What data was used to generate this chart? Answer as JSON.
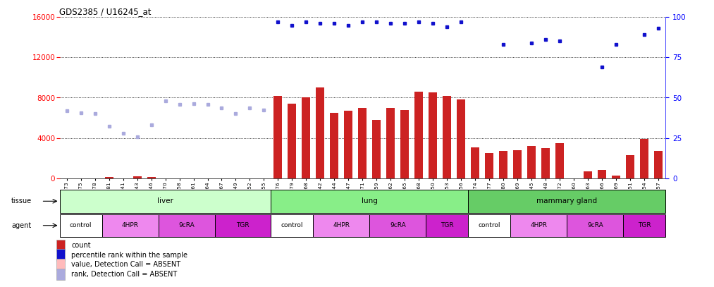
{
  "title": "GDS2385 / U16245_at",
  "samples": [
    "GSM89873",
    "GSM89875",
    "GSM89878",
    "GSM89881",
    "GSM89841",
    "GSM89843",
    "GSM89846",
    "GSM89870",
    "GSM89858",
    "GSM89861",
    "GSM89864",
    "GSM89867",
    "GSM89849",
    "GSM89852",
    "GSM89855",
    "GSM89876",
    "GSM89879",
    "GSM90168",
    "GSM89842",
    "GSM89844",
    "GSM89847",
    "GSM89871",
    "GSM89859",
    "GSM89862",
    "GSM89865",
    "GSM89868",
    "GSM89850",
    "GSM89853",
    "GSM89856",
    "GSM89974",
    "GSM89977",
    "GSM89980",
    "GSM90169",
    "GSM89945",
    "GSM89848",
    "GSM89872",
    "GSM89860",
    "GSM89863",
    "GSM89866",
    "GSM89869",
    "GSM89851",
    "GSM89654",
    "GSM89857"
  ],
  "bar_values": [
    0,
    0,
    0,
    150,
    0,
    200,
    150,
    0,
    0,
    0,
    0,
    0,
    0,
    0,
    0,
    8200,
    7400,
    8000,
    9000,
    6500,
    6700,
    7000,
    5800,
    7000,
    6800,
    8600,
    8500,
    8200,
    7800,
    3100,
    2500,
    2700,
    2800,
    3200,
    3000,
    3500,
    0,
    700,
    800,
    300,
    2300,
    3900,
    2700
  ],
  "dot_values_blue_pct": [
    null,
    null,
    null,
    null,
    null,
    null,
    null,
    null,
    null,
    null,
    null,
    null,
    null,
    null,
    null,
    97,
    95,
    97,
    96,
    96,
    95,
    97,
    97,
    96,
    96,
    97,
    96,
    94,
    97,
    null,
    null,
    83,
    null,
    84,
    86,
    85,
    null,
    null,
    69,
    83,
    null,
    89,
    93
  ],
  "dot_values_light": [
    6700,
    6500,
    6400,
    5200,
    4500,
    4100,
    5300,
    7700,
    7300,
    7400,
    7300,
    7000,
    6400,
    7000,
    6800,
    null,
    null,
    null,
    null,
    null,
    null,
    null,
    null,
    null,
    null,
    null,
    null,
    null,
    null,
    null,
    null,
    null,
    null,
    null,
    null,
    null,
    null,
    null,
    null,
    null,
    null,
    null,
    null
  ],
  "tissues": [
    {
      "label": "liver",
      "start": 0,
      "end": 15,
      "color": "#ccffcc"
    },
    {
      "label": "lung",
      "start": 15,
      "end": 29,
      "color": "#88ee88"
    },
    {
      "label": "mammary gland",
      "start": 29,
      "end": 43,
      "color": "#66cc66"
    }
  ],
  "agents": [
    {
      "label": "control",
      "start": 0,
      "end": 3,
      "color": "#ffffff"
    },
    {
      "label": "4HPR",
      "start": 3,
      "end": 7,
      "color": "#ee88ee"
    },
    {
      "label": "9cRA",
      "start": 7,
      "end": 11,
      "color": "#dd55dd"
    },
    {
      "label": "TGR",
      "start": 11,
      "end": 15,
      "color": "#cc22cc"
    },
    {
      "label": "control",
      "start": 15,
      "end": 18,
      "color": "#ffffff"
    },
    {
      "label": "4HPR",
      "start": 18,
      "end": 22,
      "color": "#ee88ee"
    },
    {
      "label": "9cRA",
      "start": 22,
      "end": 26,
      "color": "#dd55dd"
    },
    {
      "label": "TGR",
      "start": 26,
      "end": 29,
      "color": "#cc22cc"
    },
    {
      "label": "control",
      "start": 29,
      "end": 32,
      "color": "#ffffff"
    },
    {
      "label": "4HPR",
      "start": 32,
      "end": 36,
      "color": "#ee88ee"
    },
    {
      "label": "9cRA",
      "start": 36,
      "end": 40,
      "color": "#dd55dd"
    },
    {
      "label": "TGR",
      "start": 40,
      "end": 43,
      "color": "#cc22cc"
    }
  ],
  "ylim_left": [
    0,
    16000
  ],
  "ylim_right": [
    0,
    100
  ],
  "yticks_left": [
    0,
    4000,
    8000,
    12000,
    16000
  ],
  "yticks_right": [
    0,
    25,
    50,
    75,
    100
  ],
  "bar_color": "#cc2222",
  "dot_blue_color": "#1111cc",
  "dot_light_color": "#aaaadd",
  "absent_bar_color": "#ffbbbb",
  "background_color": "#ffffff"
}
